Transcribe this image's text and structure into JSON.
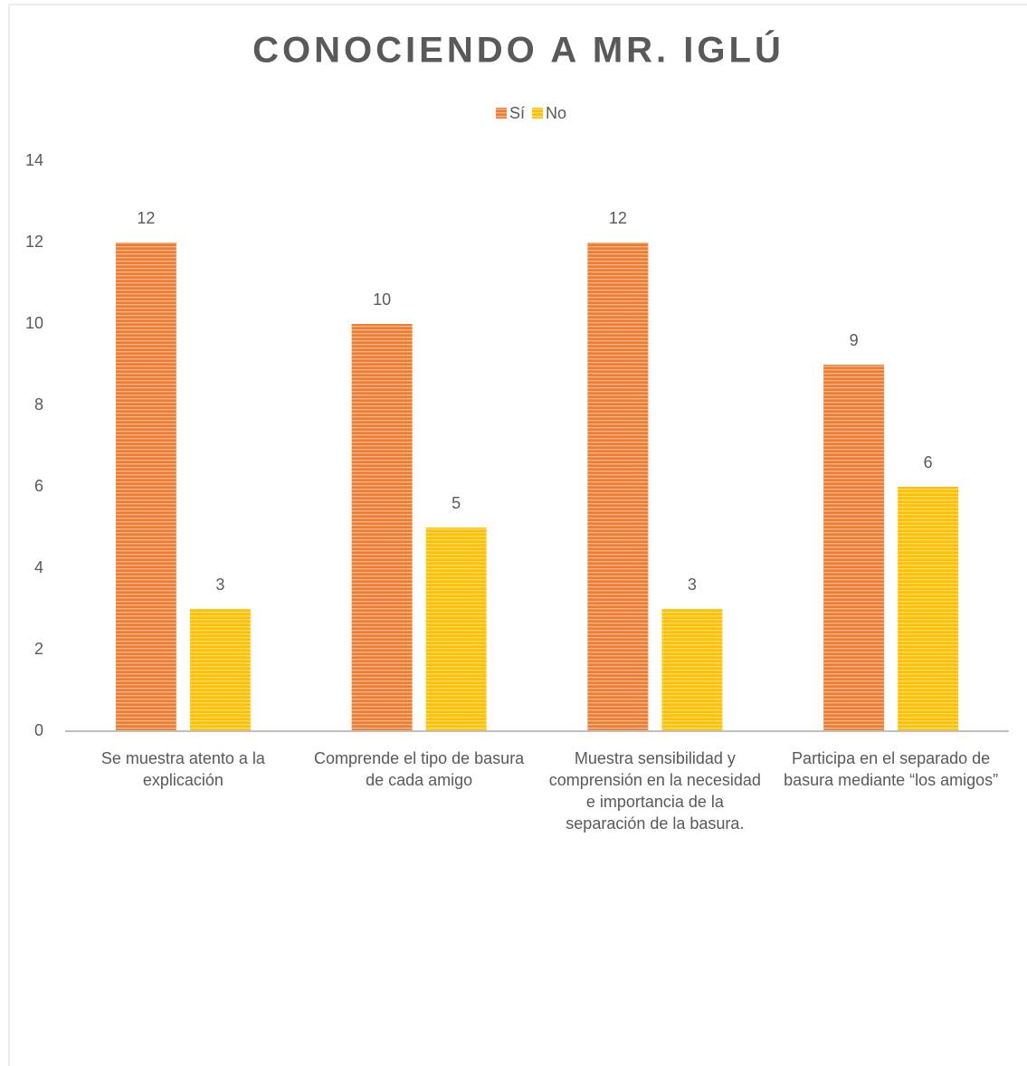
{
  "chart_data": {
    "type": "bar",
    "title": "CONOCIENDO A MR. IGLÚ",
    "categories": [
      "Se muestra atento a la explicación",
      "Comprende el tipo de basura de cada amigo",
      "Muestra sensibilidad y comprensión en la necesidad e importancia de la separación de la basura.",
      "Participa en el separado de basura mediante “los amigos”"
    ],
    "series": [
      {
        "name": "Sí",
        "color": "#ED7D31",
        "values": [
          12,
          10,
          12,
          9
        ]
      },
      {
        "name": "No",
        "color": "#FFC000",
        "values": [
          3,
          5,
          3,
          6
        ]
      }
    ],
    "ylim": [
      0,
      14
    ],
    "yticks": [
      0,
      2,
      4,
      6,
      8,
      10,
      12,
      14
    ],
    "grid": false,
    "legend": "top"
  }
}
